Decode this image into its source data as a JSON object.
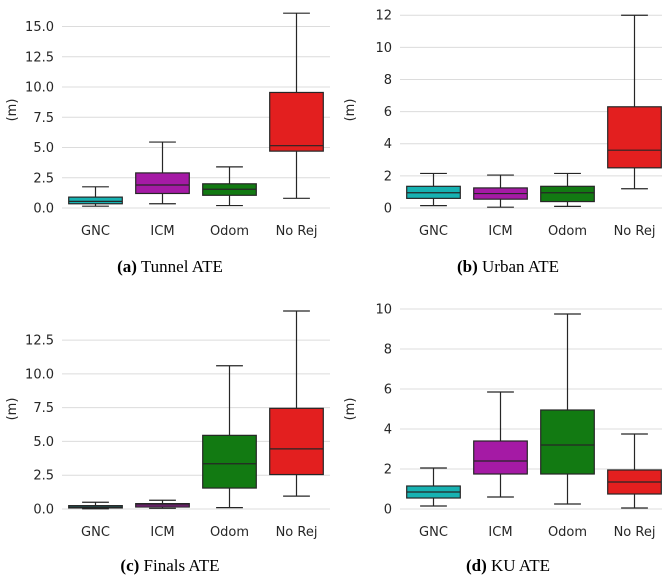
{
  "chart_data": [
    {
      "type": "box",
      "caption_label": "(a)",
      "caption_text": "Tunnel ATE",
      "ylabel": "(m)",
      "ylim": [
        0,
        16.2
      ],
      "yticks": [
        0,
        2.5,
        5,
        7.5,
        10,
        12.5,
        15
      ],
      "ytick_labels": [
        "0.0",
        "2.5",
        "5.0",
        "7.5",
        "10.0",
        "12.5",
        "15.0"
      ],
      "categories": [
        "GNC",
        "ICM",
        "Odom",
        "No Rej"
      ],
      "colors": [
        "#17b2b2",
        "#a51aa5",
        "#127a12",
        "#e31f1f"
      ],
      "boxes": [
        {
          "min": 0.15,
          "q1": 0.35,
          "median": 0.55,
          "q3": 0.9,
          "max": 1.75
        },
        {
          "min": 0.35,
          "q1": 1.2,
          "median": 1.9,
          "q3": 2.9,
          "max": 5.45
        },
        {
          "min": 0.2,
          "q1": 1.05,
          "median": 1.55,
          "q3": 2.0,
          "max": 3.4
        },
        {
          "min": 0.8,
          "q1": 4.7,
          "median": 5.15,
          "q3": 9.55,
          "max": 16.1
        }
      ]
    },
    {
      "type": "box",
      "caption_label": "(b)",
      "caption_text": "Urban ATE",
      "ylabel": "(m)",
      "ylim": [
        0,
        12.2
      ],
      "yticks": [
        0,
        2,
        4,
        6,
        8,
        10,
        12
      ],
      "ytick_labels": [
        "0",
        "2",
        "4",
        "6",
        "8",
        "10",
        "12"
      ],
      "categories": [
        "GNC",
        "ICM",
        "Odom",
        "No Rej"
      ],
      "colors": [
        "#17b2b2",
        "#a51aa5",
        "#127a12",
        "#e31f1f"
      ],
      "boxes": [
        {
          "min": 0.15,
          "q1": 0.6,
          "median": 0.95,
          "q3": 1.35,
          "max": 2.15
        },
        {
          "min": 0.05,
          "q1": 0.55,
          "median": 0.9,
          "q3": 1.25,
          "max": 2.05
        },
        {
          "min": 0.1,
          "q1": 0.4,
          "median": 0.95,
          "q3": 1.35,
          "max": 2.15
        },
        {
          "min": 1.2,
          "q1": 2.5,
          "median": 3.6,
          "q3": 6.3,
          "max": 12.0
        }
      ]
    },
    {
      "type": "box",
      "caption_label": "(c)",
      "caption_text": "Finals ATE",
      "ylabel": "(m)",
      "ylim": [
        0,
        14.8
      ],
      "yticks": [
        0,
        2.5,
        5,
        7.5,
        10,
        12.5,
        15
      ],
      "ytick_labels": [
        "0.0",
        "2.5",
        "5.0",
        "7.5",
        "10.0",
        "12.5",
        "15.0"
      ],
      "categories": [
        "GNC",
        "ICM",
        "Odom",
        "No Rej"
      ],
      "colors": [
        "#17b2b2",
        "#a51aa5",
        "#127a12",
        "#e31f1f"
      ],
      "boxes": [
        {
          "min": 0.02,
          "q1": 0.08,
          "median": 0.15,
          "q3": 0.25,
          "max": 0.5
        },
        {
          "min": 0.05,
          "q1": 0.15,
          "median": 0.3,
          "q3": 0.4,
          "max": 0.65
        },
        {
          "min": 0.1,
          "q1": 1.55,
          "median": 3.35,
          "q3": 5.45,
          "max": 10.6
        },
        {
          "min": 0.95,
          "q1": 2.55,
          "median": 4.45,
          "q3": 7.45,
          "max": 14.65
        }
      ]
    },
    {
      "type": "box",
      "caption_label": "(d)",
      "caption_text": "KU ATE",
      "ylabel": "(m)",
      "ylim": [
        0,
        10.0
      ],
      "yticks": [
        0,
        2,
        4,
        6,
        8,
        10
      ],
      "ytick_labels": [
        "0",
        "2",
        "4",
        "6",
        "8",
        "10"
      ],
      "categories": [
        "GNC",
        "ICM",
        "Odom",
        "No Rej"
      ],
      "colors": [
        "#17b2b2",
        "#a51aa5",
        "#127a12",
        "#e31f1f"
      ],
      "boxes": [
        {
          "min": 0.15,
          "q1": 0.55,
          "median": 0.85,
          "q3": 1.15,
          "max": 2.05
        },
        {
          "min": 0.6,
          "q1": 1.75,
          "median": 2.4,
          "q3": 3.4,
          "max": 5.85
        },
        {
          "min": 0.25,
          "q1": 1.75,
          "median": 3.2,
          "q3": 4.95,
          "max": 9.75
        },
        {
          "min": 0.05,
          "q1": 0.75,
          "median": 1.35,
          "q3": 1.95,
          "max": 3.75
        }
      ]
    }
  ]
}
